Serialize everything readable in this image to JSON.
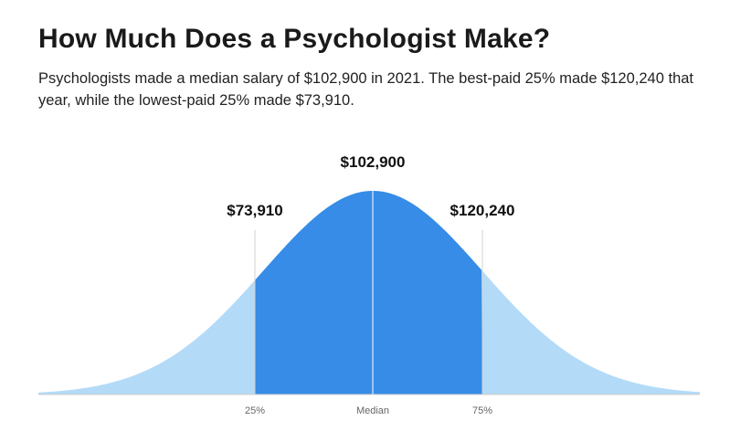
{
  "header": {
    "title": "How Much Does a Psychologist Make?",
    "subtitle": "Psychologists made a median salary of $102,900 in 2021. The best-paid 25% made $120,240 that year, while the lowest-paid 25% made $73,910."
  },
  "markers": [
    {
      "axis_label": "25%",
      "value_label": "$73,910"
    },
    {
      "axis_label": "Median",
      "value_label": "$102,900"
    },
    {
      "axis_label": "75%",
      "value_label": "$120,240"
    }
  ]
}
